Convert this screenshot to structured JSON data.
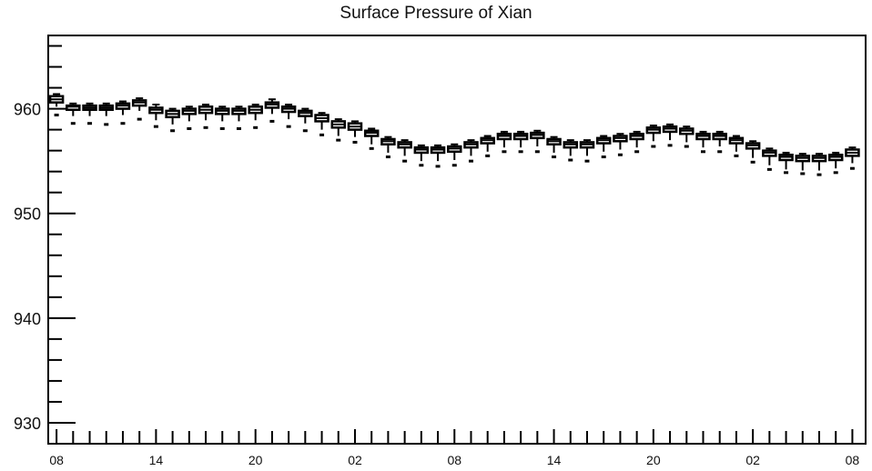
{
  "chart_data": {
    "type": "box",
    "title": "Surface Pressure of Xian",
    "xlabel": "",
    "ylabel": "",
    "ylim": [
      928,
      967
    ],
    "y_ticks": [
      930,
      940,
      950,
      960
    ],
    "x_tick_labels": [
      "08",
      "14",
      "20",
      "02",
      "08",
      "14",
      "20",
      "02",
      "08"
    ],
    "x_tick_positions": [
      0,
      6,
      12,
      18,
      24,
      30,
      36,
      42,
      48
    ],
    "x_range": [
      -0.5,
      48.8
    ],
    "grid": false,
    "legend": "none",
    "series": [
      {
        "boxes": [
          {
            "x": 0,
            "min": 960.2,
            "q1": 960.6,
            "median": 960.9,
            "q3": 961.2,
            "max": 961.4,
            "outlier": 959.4
          },
          {
            "x": 1,
            "min": 959.3,
            "q1": 959.9,
            "median": 960.2,
            "q3": 960.3,
            "max": 960.5,
            "outlier": 958.6
          },
          {
            "x": 2,
            "min": 959.3,
            "q1": 959.9,
            "median": 960.1,
            "q3": 960.3,
            "max": 960.5,
            "outlier": 958.6
          },
          {
            "x": 3,
            "min": 959.3,
            "q1": 959.9,
            "median": 960.1,
            "q3": 960.3,
            "max": 960.5,
            "outlier": 958.5
          },
          {
            "x": 4,
            "min": 959.4,
            "q1": 960.0,
            "median": 960.3,
            "q3": 960.5,
            "max": 960.7,
            "outlier": 958.6
          },
          {
            "x": 5,
            "min": 959.8,
            "q1": 960.3,
            "median": 960.6,
            "q3": 960.8,
            "max": 961.0,
            "outlier": 959.0
          },
          {
            "x": 6,
            "min": 958.9,
            "q1": 959.6,
            "median": 959.9,
            "q3": 960.1,
            "max": 960.4,
            "outlier": 958.3
          },
          {
            "x": 7,
            "min": 958.5,
            "q1": 959.2,
            "median": 959.5,
            "q3": 959.8,
            "max": 960.0,
            "outlier": 957.9
          },
          {
            "x": 8,
            "min": 958.8,
            "q1": 959.5,
            "median": 959.8,
            "q3": 960.0,
            "max": 960.2,
            "outlier": 958.1
          },
          {
            "x": 9,
            "min": 958.9,
            "q1": 959.6,
            "median": 959.9,
            "q3": 960.2,
            "max": 960.4,
            "outlier": 958.2
          },
          {
            "x": 10,
            "min": 958.8,
            "q1": 959.5,
            "median": 959.8,
            "q3": 960.0,
            "max": 960.2,
            "outlier": 958.1
          },
          {
            "x": 11,
            "min": 958.8,
            "q1": 959.5,
            "median": 959.8,
            "q3": 960.0,
            "max": 960.2,
            "outlier": 958.1
          },
          {
            "x": 12,
            "min": 958.9,
            "q1": 959.6,
            "median": 959.9,
            "q3": 960.2,
            "max": 960.4,
            "outlier": 958.2
          },
          {
            "x": 13,
            "min": 959.5,
            "q1": 960.1,
            "median": 960.4,
            "q3": 960.6,
            "max": 960.9,
            "outlier": 958.8
          },
          {
            "x": 14,
            "min": 959.0,
            "q1": 959.7,
            "median": 960.0,
            "q3": 960.2,
            "max": 960.4,
            "outlier": 958.3
          },
          {
            "x": 15,
            "min": 958.6,
            "q1": 959.3,
            "median": 959.6,
            "q3": 959.8,
            "max": 960.0,
            "outlier": 957.9
          },
          {
            "x": 16,
            "min": 958.0,
            "q1": 958.8,
            "median": 959.1,
            "q3": 959.4,
            "max": 959.6,
            "outlier": 957.5
          },
          {
            "x": 17,
            "min": 957.4,
            "q1": 958.2,
            "median": 958.5,
            "q3": 958.8,
            "max": 959.0,
            "outlier": 957.0
          },
          {
            "x": 18,
            "min": 957.3,
            "q1": 958.0,
            "median": 958.3,
            "q3": 958.6,
            "max": 958.8,
            "outlier": 956.8
          },
          {
            "x": 19,
            "min": 956.6,
            "q1": 957.4,
            "median": 957.7,
            "q3": 957.9,
            "max": 958.1,
            "outlier": 956.2
          },
          {
            "x": 20,
            "min": 955.8,
            "q1": 956.6,
            "median": 956.9,
            "q3": 957.1,
            "max": 957.3,
            "outlier": 955.4
          },
          {
            "x": 21,
            "min": 955.5,
            "q1": 956.3,
            "median": 956.6,
            "q3": 956.8,
            "max": 957.0,
            "outlier": 955.0
          },
          {
            "x": 22,
            "min": 955.0,
            "q1": 955.8,
            "median": 956.1,
            "q3": 956.3,
            "max": 956.5,
            "outlier": 954.6
          },
          {
            "x": 23,
            "min": 955.0,
            "q1": 955.8,
            "median": 956.1,
            "q3": 956.3,
            "max": 956.5,
            "outlier": 954.5
          },
          {
            "x": 24,
            "min": 955.1,
            "q1": 955.9,
            "median": 956.2,
            "q3": 956.4,
            "max": 956.6,
            "outlier": 954.6
          },
          {
            "x": 25,
            "min": 955.5,
            "q1": 956.3,
            "median": 956.6,
            "q3": 956.8,
            "max": 957.0,
            "outlier": 955.0
          },
          {
            "x": 26,
            "min": 955.9,
            "q1": 956.7,
            "median": 957.0,
            "q3": 957.2,
            "max": 957.4,
            "outlier": 955.5
          },
          {
            "x": 27,
            "min": 956.3,
            "q1": 957.1,
            "median": 957.4,
            "q3": 957.6,
            "max": 957.8,
            "outlier": 955.9
          },
          {
            "x": 28,
            "min": 956.3,
            "q1": 957.1,
            "median": 957.4,
            "q3": 957.6,
            "max": 957.8,
            "outlier": 955.9
          },
          {
            "x": 29,
            "min": 956.4,
            "q1": 957.2,
            "median": 957.5,
            "q3": 957.7,
            "max": 957.9,
            "outlier": 955.9
          },
          {
            "x": 30,
            "min": 955.8,
            "q1": 956.6,
            "median": 956.9,
            "q3": 957.1,
            "max": 957.3,
            "outlier": 955.4
          },
          {
            "x": 31,
            "min": 955.5,
            "q1": 956.3,
            "median": 956.6,
            "q3": 956.8,
            "max": 957.0,
            "outlier": 955.1
          },
          {
            "x": 32,
            "min": 955.5,
            "q1": 956.3,
            "median": 956.6,
            "q3": 956.8,
            "max": 957.0,
            "outlier": 955.0
          },
          {
            "x": 33,
            "min": 955.9,
            "q1": 956.7,
            "median": 957.0,
            "q3": 957.2,
            "max": 957.4,
            "outlier": 955.4
          },
          {
            "x": 34,
            "min": 956.1,
            "q1": 956.9,
            "median": 957.2,
            "q3": 957.4,
            "max": 957.6,
            "outlier": 955.6
          },
          {
            "x": 35,
            "min": 956.3,
            "q1": 957.1,
            "median": 957.4,
            "q3": 957.6,
            "max": 957.8,
            "outlier": 955.9
          },
          {
            "x": 36,
            "min": 956.9,
            "q1": 957.7,
            "median": 958.0,
            "q3": 958.2,
            "max": 958.4,
            "outlier": 956.4
          },
          {
            "x": 37,
            "min": 957.0,
            "q1": 957.8,
            "median": 958.1,
            "q3": 958.3,
            "max": 958.5,
            "outlier": 956.5
          },
          {
            "x": 38,
            "min": 956.8,
            "q1": 957.6,
            "median": 957.9,
            "q3": 958.1,
            "max": 958.3,
            "outlier": 956.4
          },
          {
            "x": 39,
            "min": 956.3,
            "q1": 957.1,
            "median": 957.4,
            "q3": 957.6,
            "max": 957.8,
            "outlier": 955.9
          },
          {
            "x": 40,
            "min": 956.4,
            "q1": 957.1,
            "median": 957.4,
            "q3": 957.6,
            "max": 957.8,
            "outlier": 955.9
          },
          {
            "x": 41,
            "min": 955.9,
            "q1": 956.7,
            "median": 957.0,
            "q3": 957.2,
            "max": 957.4,
            "outlier": 955.5
          },
          {
            "x": 42,
            "min": 955.3,
            "q1": 956.2,
            "median": 956.5,
            "q3": 956.7,
            "max": 956.9,
            "outlier": 954.9
          },
          {
            "x": 43,
            "min": 954.6,
            "q1": 955.5,
            "median": 955.8,
            "q3": 956.0,
            "max": 956.2,
            "outlier": 954.2
          },
          {
            "x": 44,
            "min": 954.2,
            "q1": 955.1,
            "median": 955.4,
            "q3": 955.6,
            "max": 955.8,
            "outlier": 953.9
          },
          {
            "x": 45,
            "min": 954.1,
            "q1": 955.0,
            "median": 955.3,
            "q3": 955.5,
            "max": 955.7,
            "outlier": 953.8
          },
          {
            "x": 46,
            "min": 954.1,
            "q1": 955.0,
            "median": 955.3,
            "q3": 955.5,
            "max": 955.7,
            "outlier": 953.7
          },
          {
            "x": 47,
            "min": 954.3,
            "q1": 955.1,
            "median": 955.4,
            "q3": 955.6,
            "max": 955.8,
            "outlier": 953.9
          },
          {
            "x": 48,
            "min": 954.8,
            "q1": 955.5,
            "median": 955.8,
            "q3": 956.1,
            "max": 956.3,
            "outlier": 954.3
          }
        ]
      }
    ]
  }
}
